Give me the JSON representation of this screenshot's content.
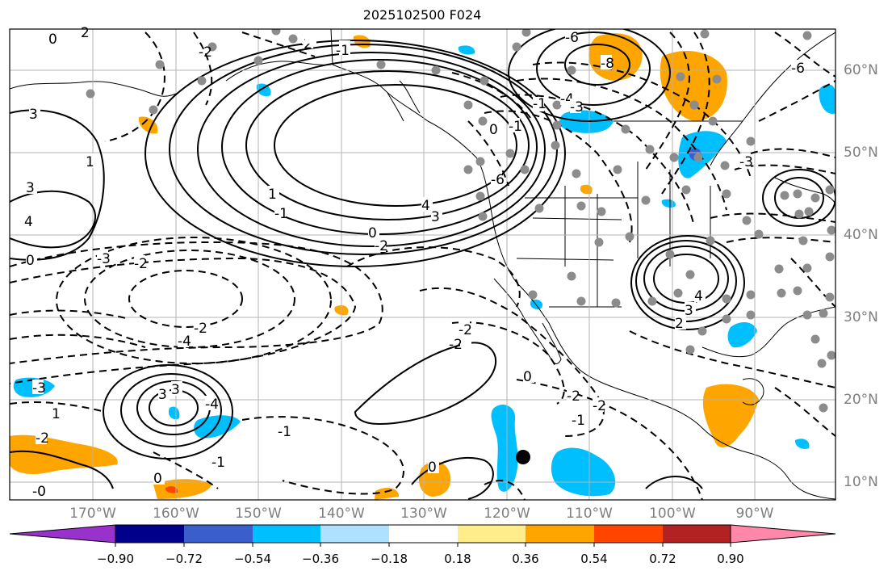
{
  "title": "2025102500 F024",
  "lon_labels": [
    "170°W",
    "160°W",
    "150°W",
    "140°W",
    "130°W",
    "120°W",
    "110°W",
    "100°W",
    "90°W"
  ],
  "lat_labels": [
    "60°N",
    "50°N",
    "40°N",
    "30°N",
    "20°N",
    "10°N"
  ],
  "colorbar": {
    "ticks": [
      "−0.90",
      "−0.72",
      "−0.54",
      "−0.36",
      "−0.18",
      "0.18",
      "0.36",
      "0.54",
      "0.72",
      "0.90"
    ],
    "colors": [
      "#9932cc",
      "#00008b",
      "#3a5fcd",
      "#00bfff",
      "#aee0ff",
      "#ffffff",
      "#ffec8b",
      "#ffa500",
      "#ff4500",
      "#b22222",
      "#ff88aa"
    ]
  },
  "contour_labels": [
    "0",
    "2",
    "-1",
    "-2",
    "3",
    "1",
    "4",
    "3",
    "0",
    "1",
    "4",
    "3",
    "-3",
    "-2",
    "0",
    "-6",
    "-6",
    "-8",
    "-4",
    "-3",
    "-6",
    "0",
    "-1",
    "-1",
    "-2",
    "-2",
    "-4",
    "-2",
    "3",
    "-3",
    "-4",
    "-2",
    "-1",
    "0",
    "-2",
    "-2",
    "-1",
    "0",
    "4",
    "3",
    "2",
    "-2",
    "-1",
    "-3",
    "3",
    "-0",
    "-2",
    "-1",
    "0",
    "1"
  ],
  "colors": {
    "land_line": "#000000",
    "grid": "#b3b3b3",
    "station": "#8c8c8c",
    "axis_text": "#7f7f7f"
  }
}
